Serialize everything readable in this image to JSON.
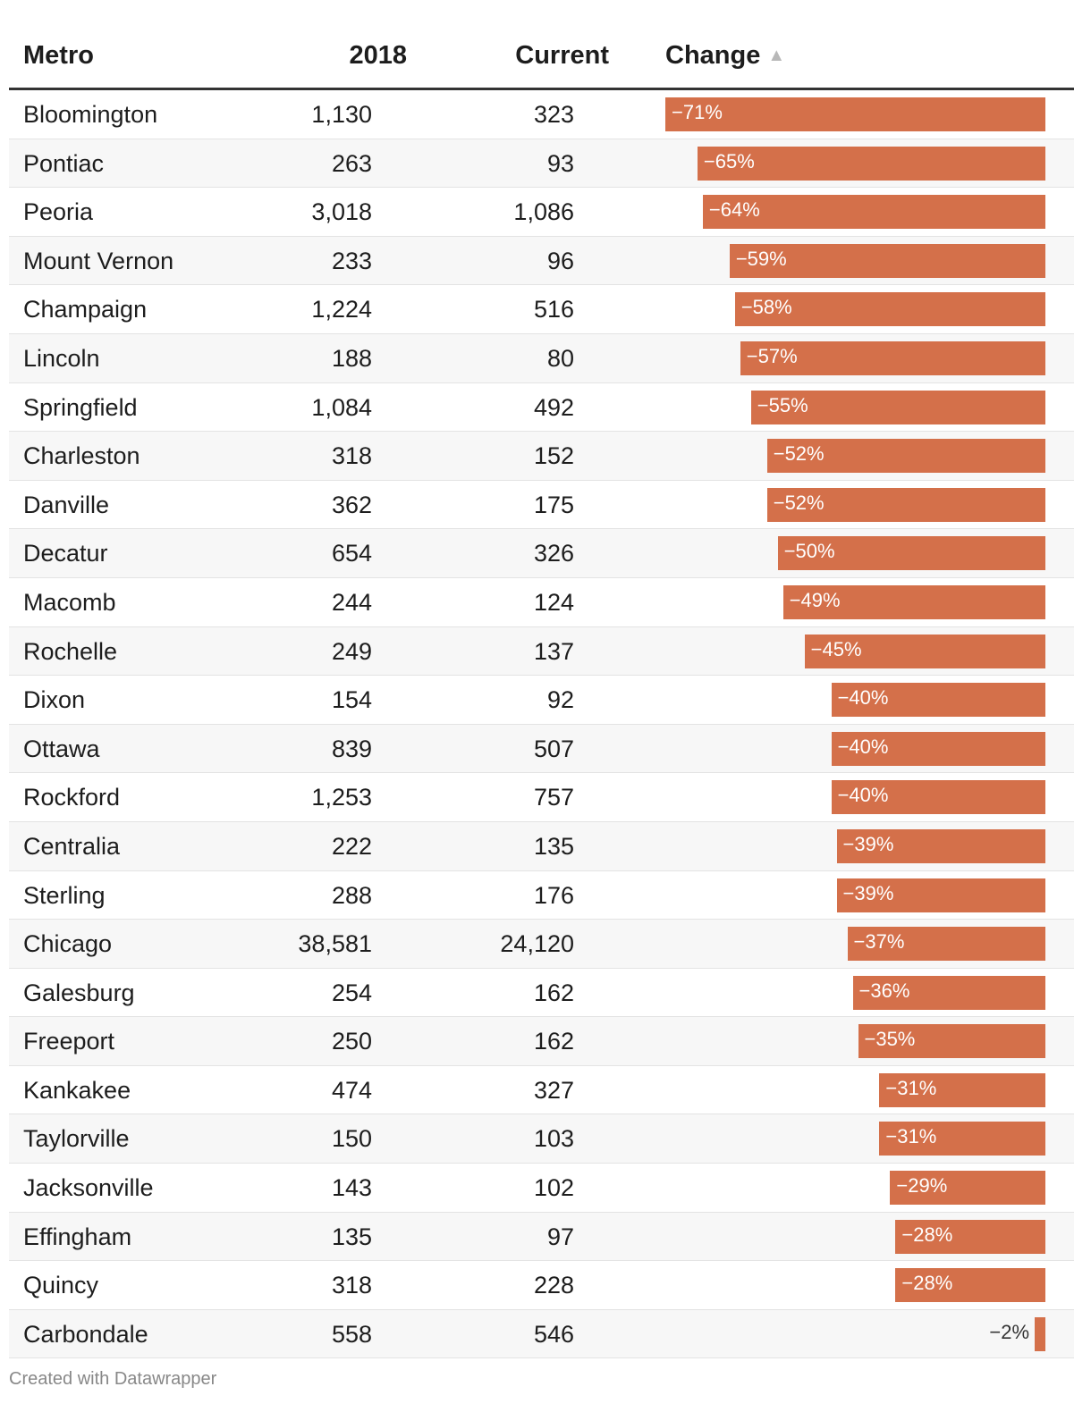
{
  "header": {
    "metro": "Metro",
    "y2018": "2018",
    "current": "Current",
    "change": "Change",
    "sort_icon": "▲"
  },
  "footer": {
    "credit": "Created with Datawrapper"
  },
  "colors": {
    "bar": "#d4704a",
    "rule": "#333333",
    "stripe": "#f7f7f7"
  },
  "chart_data": {
    "type": "table",
    "columns": [
      "Metro",
      "2018",
      "Current",
      "Change"
    ],
    "sorted_by": "Change",
    "sort_order": "ascending",
    "change_max_abs": 71,
    "rows": [
      {
        "metro": "Bloomington",
        "y2018": "1,130",
        "current": "323",
        "change": -71,
        "change_label": "−71%"
      },
      {
        "metro": "Pontiac",
        "y2018": "263",
        "current": "93",
        "change": -65,
        "change_label": "−65%"
      },
      {
        "metro": "Peoria",
        "y2018": "3,018",
        "current": "1,086",
        "change": -64,
        "change_label": "−64%"
      },
      {
        "metro": "Mount Vernon",
        "y2018": "233",
        "current": "96",
        "change": -59,
        "change_label": "−59%"
      },
      {
        "metro": "Champaign",
        "y2018": "1,224",
        "current": "516",
        "change": -58,
        "change_label": "−58%"
      },
      {
        "metro": "Lincoln",
        "y2018": "188",
        "current": "80",
        "change": -57,
        "change_label": "−57%"
      },
      {
        "metro": "Springfield",
        "y2018": "1,084",
        "current": "492",
        "change": -55,
        "change_label": "−55%"
      },
      {
        "metro": "Charleston",
        "y2018": "318",
        "current": "152",
        "change": -52,
        "change_label": "−52%"
      },
      {
        "metro": "Danville",
        "y2018": "362",
        "current": "175",
        "change": -52,
        "change_label": "−52%"
      },
      {
        "metro": "Decatur",
        "y2018": "654",
        "current": "326",
        "change": -50,
        "change_label": "−50%"
      },
      {
        "metro": "Macomb",
        "y2018": "244",
        "current": "124",
        "change": -49,
        "change_label": "−49%"
      },
      {
        "metro": "Rochelle",
        "y2018": "249",
        "current": "137",
        "change": -45,
        "change_label": "−45%"
      },
      {
        "metro": "Dixon",
        "y2018": "154",
        "current": "92",
        "change": -40,
        "change_label": "−40%"
      },
      {
        "metro": "Ottawa",
        "y2018": "839",
        "current": "507",
        "change": -40,
        "change_label": "−40%"
      },
      {
        "metro": "Rockford",
        "y2018": "1,253",
        "current": "757",
        "change": -40,
        "change_label": "−40%"
      },
      {
        "metro": "Centralia",
        "y2018": "222",
        "current": "135",
        "change": -39,
        "change_label": "−39%"
      },
      {
        "metro": "Sterling",
        "y2018": "288",
        "current": "176",
        "change": -39,
        "change_label": "−39%"
      },
      {
        "metro": "Chicago",
        "y2018": "38,581",
        "current": "24,120",
        "change": -37,
        "change_label": "−37%"
      },
      {
        "metro": "Galesburg",
        "y2018": "254",
        "current": "162",
        "change": -36,
        "change_label": "−36%"
      },
      {
        "metro": "Freeport",
        "y2018": "250",
        "current": "162",
        "change": -35,
        "change_label": "−35%"
      },
      {
        "metro": "Kankakee",
        "y2018": "474",
        "current": "327",
        "change": -31,
        "change_label": "−31%"
      },
      {
        "metro": "Taylorville",
        "y2018": "150",
        "current": "103",
        "change": -31,
        "change_label": "−31%"
      },
      {
        "metro": "Jacksonville",
        "y2018": "143",
        "current": "102",
        "change": -29,
        "change_label": "−29%"
      },
      {
        "metro": "Effingham",
        "y2018": "135",
        "current": "97",
        "change": -28,
        "change_label": "−28%"
      },
      {
        "metro": "Quincy",
        "y2018": "318",
        "current": "228",
        "change": -28,
        "change_label": "−28%"
      },
      {
        "metro": "Carbondale",
        "y2018": "558",
        "current": "546",
        "change": -2,
        "change_label": "−2%"
      }
    ]
  }
}
